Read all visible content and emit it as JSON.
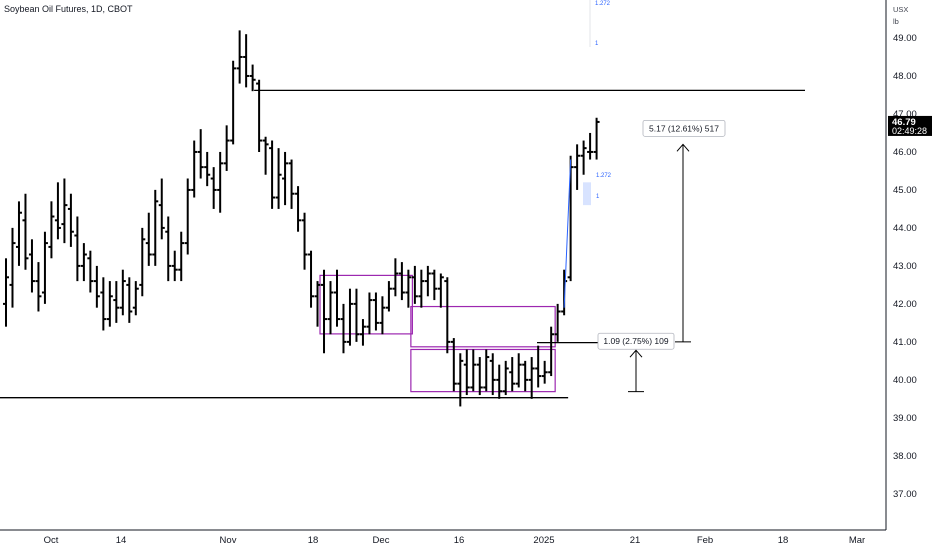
{
  "chart_data": {
    "type": "ohlc",
    "title": "Soybean Oil Futures, 1D, CBOT",
    "unit_lines": [
      "USX",
      "lb"
    ],
    "ylim": [
      36.1,
      50.0
    ],
    "y_ticks": [
      "49.00",
      "48.00",
      "47.00",
      "46.00",
      "45.00",
      "44.00",
      "43.00",
      "42.00",
      "41.00",
      "40.00",
      "39.00",
      "38.00",
      "37.00"
    ],
    "x_ticks": [
      "Oct",
      "14",
      "Nov",
      "18",
      "Dec",
      "16",
      "2025",
      "21",
      "Feb",
      "18",
      "Mar"
    ],
    "last_price": "46.79",
    "countdown": "02:49:28",
    "bars": [
      {
        "o": 42.0,
        "h": 43.2,
        "l": 41.4,
        "c": 42.7
      },
      {
        "o": 42.5,
        "h": 44.0,
        "l": 41.9,
        "c": 43.6
      },
      {
        "o": 43.5,
        "h": 44.7,
        "l": 43.0,
        "c": 44.4
      },
      {
        "o": 44.2,
        "h": 44.9,
        "l": 42.9,
        "c": 43.2
      },
      {
        "o": 43.3,
        "h": 43.7,
        "l": 42.3,
        "c": 42.6
      },
      {
        "o": 42.6,
        "h": 43.1,
        "l": 41.8,
        "c": 42.2
      },
      {
        "o": 42.3,
        "h": 43.9,
        "l": 42.0,
        "c": 43.6
      },
      {
        "o": 43.5,
        "h": 44.7,
        "l": 43.2,
        "c": 44.3
      },
      {
        "o": 44.2,
        "h": 45.2,
        "l": 43.7,
        "c": 44.0
      },
      {
        "o": 44.1,
        "h": 45.3,
        "l": 43.6,
        "c": 44.6
      },
      {
        "o": 44.5,
        "h": 44.9,
        "l": 43.5,
        "c": 43.9
      },
      {
        "o": 43.8,
        "h": 44.3,
        "l": 42.6,
        "c": 43.0
      },
      {
        "o": 43.0,
        "h": 43.6,
        "l": 42.6,
        "c": 43.3
      },
      {
        "o": 43.2,
        "h": 43.4,
        "l": 42.3,
        "c": 42.6
      },
      {
        "o": 42.6,
        "h": 43.0,
        "l": 41.9,
        "c": 42.2
      },
      {
        "o": 42.3,
        "h": 42.7,
        "l": 41.3,
        "c": 41.6
      },
      {
        "o": 41.6,
        "h": 42.6,
        "l": 41.4,
        "c": 42.2
      },
      {
        "o": 42.1,
        "h": 42.6,
        "l": 41.5,
        "c": 41.9
      },
      {
        "o": 41.9,
        "h": 42.9,
        "l": 41.7,
        "c": 42.6
      },
      {
        "o": 42.5,
        "h": 42.7,
        "l": 41.5,
        "c": 41.8
      },
      {
        "o": 41.9,
        "h": 42.6,
        "l": 41.7,
        "c": 42.4
      },
      {
        "o": 42.5,
        "h": 44.0,
        "l": 42.2,
        "c": 43.7
      },
      {
        "o": 43.6,
        "h": 44.4,
        "l": 43.0,
        "c": 43.3
      },
      {
        "o": 43.3,
        "h": 45.0,
        "l": 43.0,
        "c": 44.7
      },
      {
        "o": 44.6,
        "h": 45.3,
        "l": 43.7,
        "c": 44.0
      },
      {
        "o": 43.9,
        "h": 44.3,
        "l": 42.6,
        "c": 43.0
      },
      {
        "o": 43.0,
        "h": 43.4,
        "l": 42.6,
        "c": 42.9
      },
      {
        "o": 42.9,
        "h": 43.9,
        "l": 42.6,
        "c": 43.6
      },
      {
        "o": 43.6,
        "h": 45.3,
        "l": 43.3,
        "c": 45.0
      },
      {
        "o": 45.0,
        "h": 46.3,
        "l": 44.8,
        "c": 46.0
      },
      {
        "o": 46.0,
        "h": 46.6,
        "l": 45.3,
        "c": 45.6
      },
      {
        "o": 45.6,
        "h": 46.0,
        "l": 45.1,
        "c": 45.4
      },
      {
        "o": 45.3,
        "h": 45.6,
        "l": 44.5,
        "c": 45.0
      },
      {
        "o": 45.0,
        "h": 46.0,
        "l": 44.4,
        "c": 45.7
      },
      {
        "o": 45.7,
        "h": 46.7,
        "l": 45.5,
        "c": 46.3
      },
      {
        "o": 46.3,
        "h": 48.4,
        "l": 46.2,
        "c": 48.2
      },
      {
        "o": 48.2,
        "h": 49.2,
        "l": 47.8,
        "c": 48.5
      },
      {
        "o": 48.5,
        "h": 49.1,
        "l": 47.7,
        "c": 48.0
      },
      {
        "o": 48.0,
        "h": 48.3,
        "l": 47.6,
        "c": 47.9
      },
      {
        "o": 47.8,
        "h": 47.9,
        "l": 46.0,
        "c": 46.3
      },
      {
        "o": 46.3,
        "h": 46.4,
        "l": 45.4,
        "c": 46.2
      },
      {
        "o": 46.1,
        "h": 46.3,
        "l": 44.5,
        "c": 44.8
      },
      {
        "o": 44.8,
        "h": 46.1,
        "l": 44.5,
        "c": 45.4
      },
      {
        "o": 45.3,
        "h": 46.0,
        "l": 44.6,
        "c": 45.7
      },
      {
        "o": 45.7,
        "h": 45.8,
        "l": 44.5,
        "c": 44.9
      },
      {
        "o": 44.9,
        "h": 45.1,
        "l": 43.9,
        "c": 44.2
      },
      {
        "o": 44.2,
        "h": 44.4,
        "l": 42.9,
        "c": 43.3
      },
      {
        "o": 43.3,
        "h": 43.4,
        "l": 41.9,
        "c": 42.2
      },
      {
        "o": 42.2,
        "h": 42.6,
        "l": 41.4,
        "c": 42.5
      },
      {
        "o": 42.5,
        "h": 42.9,
        "l": 40.7,
        "c": 41.6
      },
      {
        "o": 41.6,
        "h": 42.6,
        "l": 41.2,
        "c": 42.3
      },
      {
        "o": 42.3,
        "h": 42.9,
        "l": 41.4,
        "c": 41.6
      },
      {
        "o": 41.6,
        "h": 42.0,
        "l": 40.7,
        "c": 41.0
      },
      {
        "o": 41.0,
        "h": 42.4,
        "l": 40.9,
        "c": 42.0
      },
      {
        "o": 42.0,
        "h": 42.4,
        "l": 41.0,
        "c": 41.2
      },
      {
        "o": 41.2,
        "h": 41.6,
        "l": 40.9,
        "c": 41.4
      },
      {
        "o": 41.4,
        "h": 42.3,
        "l": 41.2,
        "c": 42.1
      },
      {
        "o": 42.1,
        "h": 42.3,
        "l": 41.3,
        "c": 41.5
      },
      {
        "o": 41.5,
        "h": 42.2,
        "l": 41.2,
        "c": 41.9
      },
      {
        "o": 41.9,
        "h": 42.6,
        "l": 41.8,
        "c": 42.4
      },
      {
        "o": 42.4,
        "h": 43.2,
        "l": 42.2,
        "c": 42.8
      },
      {
        "o": 42.8,
        "h": 43.1,
        "l": 42.1,
        "c": 42.3
      },
      {
        "o": 42.3,
        "h": 42.9,
        "l": 41.9,
        "c": 42.7
      },
      {
        "o": 42.7,
        "h": 43.0,
        "l": 42.0,
        "c": 42.2
      },
      {
        "o": 42.2,
        "h": 42.9,
        "l": 41.9,
        "c": 42.6
      },
      {
        "o": 42.6,
        "h": 43.0,
        "l": 42.2,
        "c": 42.8
      },
      {
        "o": 42.8,
        "h": 42.9,
        "l": 42.1,
        "c": 42.4
      },
      {
        "o": 42.4,
        "h": 42.8,
        "l": 41.9,
        "c": 42.7
      },
      {
        "o": 42.6,
        "h": 42.7,
        "l": 40.7,
        "c": 41.0
      },
      {
        "o": 41.0,
        "h": 41.1,
        "l": 39.7,
        "c": 39.9
      },
      {
        "o": 39.9,
        "h": 40.7,
        "l": 39.3,
        "c": 40.5
      },
      {
        "o": 40.4,
        "h": 40.8,
        "l": 39.6,
        "c": 39.8
      },
      {
        "o": 39.8,
        "h": 40.8,
        "l": 39.7,
        "c": 40.4
      },
      {
        "o": 40.4,
        "h": 40.6,
        "l": 39.6,
        "c": 39.8
      },
      {
        "o": 39.8,
        "h": 40.8,
        "l": 39.7,
        "c": 40.6
      },
      {
        "o": 40.5,
        "h": 40.7,
        "l": 39.6,
        "c": 40.0
      },
      {
        "o": 40.0,
        "h": 40.4,
        "l": 39.5,
        "c": 39.7
      },
      {
        "o": 39.7,
        "h": 40.5,
        "l": 39.6,
        "c": 40.3
      },
      {
        "o": 40.2,
        "h": 40.6,
        "l": 39.7,
        "c": 39.9
      },
      {
        "o": 39.9,
        "h": 40.7,
        "l": 39.8,
        "c": 40.4
      },
      {
        "o": 40.4,
        "h": 40.5,
        "l": 39.7,
        "c": 40.0
      },
      {
        "o": 40.0,
        "h": 40.6,
        "l": 39.5,
        "c": 40.3
      },
      {
        "o": 40.3,
        "h": 40.9,
        "l": 39.8,
        "c": 40.1
      },
      {
        "o": 40.1,
        "h": 40.5,
        "l": 39.9,
        "c": 40.2
      },
      {
        "o": 40.2,
        "h": 41.4,
        "l": 40.1,
        "c": 41.2
      },
      {
        "o": 41.2,
        "h": 42.0,
        "l": 41.0,
        "c": 41.8
      },
      {
        "o": 41.8,
        "h": 42.9,
        "l": 41.7,
        "c": 42.6
      },
      {
        "o": 42.7,
        "h": 45.9,
        "l": 42.6,
        "c": 45.6
      },
      {
        "o": 45.6,
        "h": 46.2,
        "l": 45.0,
        "c": 45.9
      },
      {
        "o": 45.9,
        "h": 46.3,
        "l": 45.4,
        "c": 46.1
      },
      {
        "o": 46.0,
        "h": 46.5,
        "l": 45.8,
        "c": 46.0
      },
      {
        "o": 46.0,
        "h": 46.9,
        "l": 45.8,
        "c": 46.79
      }
    ],
    "horizontal_lines": [
      {
        "price": 47.62,
        "from_bar": 39,
        "to_x": 805
      },
      {
        "price": 39.53,
        "from_x": 0,
        "to_bar": 86
      }
    ],
    "boxes": [
      {
        "from_bar": 49,
        "to_bar": 62,
        "top": 42.75,
        "bottom": 41.21
      },
      {
        "from_bar": 63,
        "to_bar": 84,
        "top": 41.93,
        "bottom": 40.87
      },
      {
        "from_bar": 63,
        "to_bar": 84,
        "top": 40.8,
        "bottom": 39.69
      }
    ],
    "measures": [
      {
        "label": "5.17 (12.61%) 517",
        "from": 41.0,
        "to": 46.2
      },
      {
        "label": "1.09 (2.75%) 109",
        "from": 39.69,
        "to": 40.78
      }
    ],
    "fib_small_labels": [
      "1.272",
      "1",
      "1.272",
      "1"
    ],
    "colors": {
      "bars": "#000000",
      "box": "#9c27b0",
      "accent": "#2962ff",
      "last_bg": "#000000"
    }
  }
}
